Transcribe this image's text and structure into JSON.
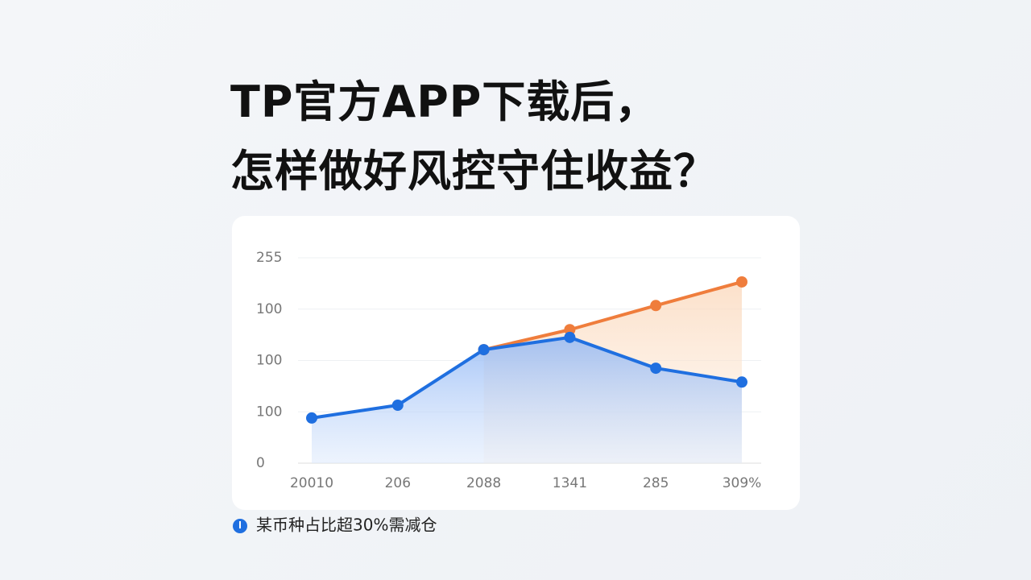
{
  "chart_data": {
    "type": "line",
    "title": "TP官方APP下载后，",
    "subtitle": "怎样做好风控守住收益？",
    "categories": [
      "20010",
      "206",
      "2088",
      "1341",
      "285",
      "309%"
    ],
    "series": [
      {
        "name": "某币种占比超30%需减仓",
        "color": "#1f6fe0",
        "values": [
          0.88,
          1.13,
          2.21,
          2.45,
          1.85,
          1.58
        ]
      },
      {
        "color": "#ef7d3c",
        "values": [
          null,
          null,
          2.21,
          2.6,
          3.07,
          3.53
        ]
      }
    ],
    "ylim": [
      0,
      4
    ],
    "yticks": [
      {
        "value": 0,
        "label": "0"
      },
      {
        "value": 1,
        "label": "100"
      },
      {
        "value": 2,
        "label": "100"
      },
      {
        "value": 3,
        "label": "100"
      },
      {
        "value": 4,
        "label": "255"
      }
    ],
    "grid": true
  }
}
